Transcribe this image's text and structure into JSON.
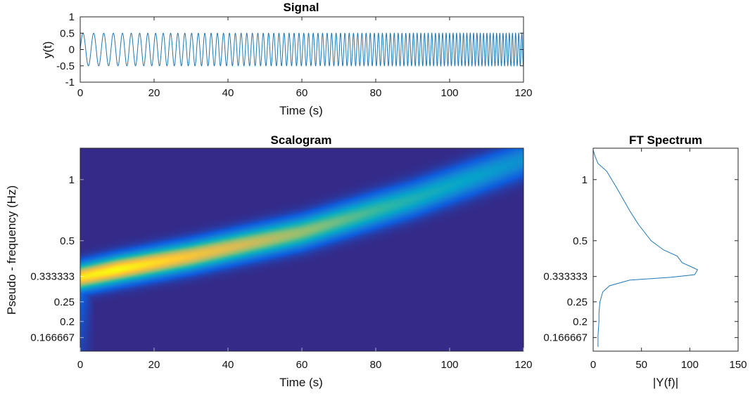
{
  "colors": {
    "line": "#1f77b4",
    "scalogram_background": "#352a87",
    "scalogram_colormap": [
      "#352a87",
      "#0f5cdd",
      "#1481d6",
      "#06a4ca",
      "#2eb7a4",
      "#87bf77",
      "#d1bb59",
      "#fec832",
      "#f9fb0e"
    ]
  },
  "chart_data": [
    {
      "id": "signal",
      "type": "line",
      "title": "Signal",
      "xlabel": "Time (s)",
      "ylabel": "y(t)",
      "xlim": [
        0,
        120
      ],
      "ylim": [
        -1,
        1
      ],
      "xticks": [
        "0",
        "20",
        "40",
        "60",
        "80",
        "100",
        "120"
      ],
      "yticks": [
        "-1",
        "-0.5",
        "0",
        "0.5",
        "1"
      ],
      "grid": false,
      "series": [
        {
          "amplitude": 0.5,
          "start_frequency_hz": 0.33,
          "end_frequency_hz": 1.2,
          "t_start": 0,
          "t_end": 120
        }
      ]
    },
    {
      "id": "scalogram",
      "type": "heatmap",
      "title": "Scalogram",
      "xlabel": "Time (s)",
      "ylabel": "Pseudo - frequency (Hz)",
      "xlim": [
        0,
        120
      ],
      "ylim_period_s": [
        0.7,
        7
      ],
      "y_scale": "log of period",
      "xticks": [
        "0",
        "20",
        "40",
        "60",
        "80",
        "100",
        "120"
      ],
      "yticks": [
        "1",
        "0.5",
        "0.333333",
        "0.25",
        "0.2",
        "0.166667"
      ],
      "ridge": [
        {
          "t": 0,
          "f": 0.33,
          "magnitude": 0.95
        },
        {
          "t": 10,
          "f": 0.36,
          "magnitude": 1.0
        },
        {
          "t": 30,
          "f": 0.42,
          "magnitude": 0.85
        },
        {
          "t": 60,
          "f": 0.55,
          "magnitude": 0.65
        },
        {
          "t": 90,
          "f": 0.8,
          "magnitude": 0.45
        },
        {
          "t": 120,
          "f": 1.25,
          "magnitude": 0.3
        }
      ]
    },
    {
      "id": "ft_spectrum",
      "type": "line",
      "title": "FT Spectrum",
      "xlabel": "|Y(f)|",
      "ylabel": "",
      "xlim": [
        0,
        150
      ],
      "ylim_period_s": [
        0.7,
        7
      ],
      "y_scale": "log of period",
      "xticks": [
        "0",
        "50",
        "100",
        "150"
      ],
      "yticks": [
        "1",
        "0.5",
        "0.333333",
        "0.25",
        "0.2",
        "0.166667"
      ],
      "series": [
        {
          "points": [
            {
              "f": 0.15,
              "y": 5
            },
            {
              "f": 0.17,
              "y": 5
            },
            {
              "f": 0.2,
              "y": 6
            },
            {
              "f": 0.22,
              "y": 6
            },
            {
              "f": 0.25,
              "y": 7
            },
            {
              "f": 0.28,
              "y": 10
            },
            {
              "f": 0.3,
              "y": 17
            },
            {
              "f": 0.32,
              "y": 38
            },
            {
              "f": 0.33,
              "y": 80
            },
            {
              "f": 0.34,
              "y": 105
            },
            {
              "f": 0.36,
              "y": 108
            },
            {
              "f": 0.39,
              "y": 92
            },
            {
              "f": 0.42,
              "y": 87
            },
            {
              "f": 0.45,
              "y": 73
            },
            {
              "f": 0.5,
              "y": 60
            },
            {
              "f": 0.6,
              "y": 47
            },
            {
              "f": 0.7,
              "y": 38
            },
            {
              "f": 0.9,
              "y": 25
            },
            {
              "f": 1.1,
              "y": 14
            },
            {
              "f": 1.2,
              "y": 5
            },
            {
              "f": 1.3,
              "y": 2
            },
            {
              "f": 1.4,
              "y": 0
            }
          ]
        }
      ]
    }
  ]
}
